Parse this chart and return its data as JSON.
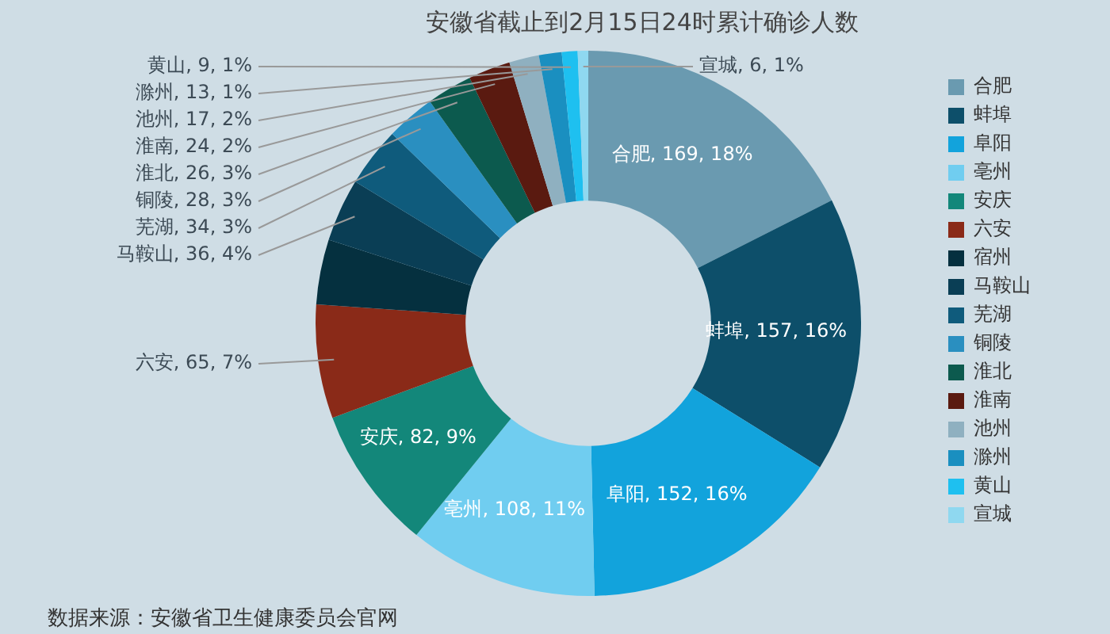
{
  "chart_data": {
    "type": "donut",
    "title": "安徽省截止到2月15日24时累计确诊人数",
    "categories": [
      "合肥",
      "蚌埠",
      "阜阳",
      "亳州",
      "安庆",
      "六安",
      "宿州",
      "马鞍山",
      "芜湖",
      "铜陵",
      "淮北",
      "淮南",
      "池州",
      "滁州",
      "黄山",
      "宣城"
    ],
    "values": [
      169,
      157,
      152,
      108,
      82,
      65,
      37,
      36,
      34,
      28,
      26,
      24,
      17,
      13,
      9,
      6
    ],
    "value_labels": [
      "合肥, 169, 18%",
      "蚌埠, 157, 16%",
      "阜阳, 152, 16%",
      "亳州, 108, 11%",
      "安庆, 82, 9%",
      "六安, 65, 7%",
      null,
      "马鞍山, 36, 4%",
      "芜湖, 34, 3%",
      "铜陵, 28, 3%",
      "淮北, 26, 3%",
      "淮南, 24, 2%",
      "池州, 17, 2%",
      "滁州, 13, 1%",
      "黄山, 9, 1%",
      "宣城, 6, 1%"
    ],
    "colors": [
      "#6a9ab0",
      "#0d4f6a",
      "#12a3dc",
      "#70cdf0",
      "#13877a",
      "#8a2a18",
      "#05303f",
      "#0a3e55",
      "#0f5b7c",
      "#2a8fc0",
      "#0c5a4e",
      "#5a1a10",
      "#8fb0c0",
      "#1a8fc0",
      "#1ec0f0",
      "#8fd8f0"
    ],
    "legend": "right",
    "annotations": [
      "数据来源：安徽省卫生健康委员会官网"
    ]
  }
}
